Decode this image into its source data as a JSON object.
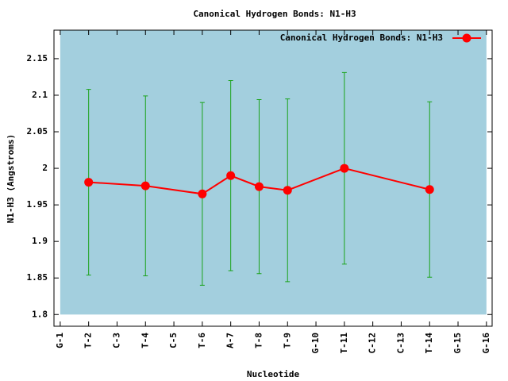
{
  "chart_data": {
    "type": "line",
    "title": "Canonical Hydrogen Bonds: N1-H3",
    "xlabel": "Nucleotide",
    "ylabel": "N1-H3 (Angstroms)",
    "xlim": [
      0.78,
      16.2
    ],
    "ylim": [
      1.784,
      2.189
    ],
    "xticks": [
      {
        "value": 1,
        "label": "G-1"
      },
      {
        "value": 2,
        "label": "T-2"
      },
      {
        "value": 3,
        "label": "C-3"
      },
      {
        "value": 4,
        "label": "T-4"
      },
      {
        "value": 5,
        "label": "C-5"
      },
      {
        "value": 6,
        "label": "T-6"
      },
      {
        "value": 7,
        "label": "A-7"
      },
      {
        "value": 8,
        "label": "T-8"
      },
      {
        "value": 9,
        "label": "T-9"
      },
      {
        "value": 10,
        "label": "G-10"
      },
      {
        "value": 11,
        "label": "T-11"
      },
      {
        "value": 12,
        "label": "C-12"
      },
      {
        "value": 13,
        "label": "C-13"
      },
      {
        "value": 14,
        "label": "T-14"
      },
      {
        "value": 15,
        "label": "G-15"
      },
      {
        "value": 16,
        "label": "G-16"
      }
    ],
    "yticks": [
      1.8,
      1.85,
      1.9,
      1.95,
      2,
      2.05,
      2.1,
      2.15
    ],
    "plot_background": "#a3cfde",
    "error_color": "#1aa31a",
    "legend": "upper right",
    "series": [
      {
        "name": "Canonical Hydrogen Bonds: N1-H3",
        "color": "#ff0000",
        "x": [
          2,
          4,
          6,
          7,
          8,
          9,
          11,
          14
        ],
        "values": [
          1.981,
          1.976,
          1.965,
          1.99,
          1.975,
          1.97,
          2.0,
          1.971
        ],
        "errors": [
          0.127,
          0.123,
          0.125,
          0.13,
          0.119,
          0.125,
          0.131,
          0.12
        ]
      }
    ]
  }
}
